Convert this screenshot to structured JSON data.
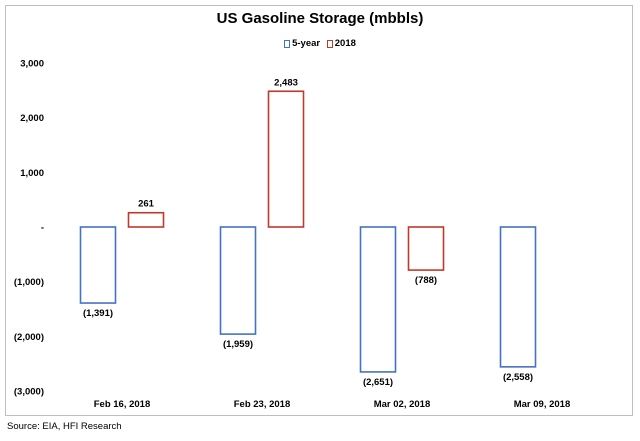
{
  "source": "Source: EIA, HFI Research",
  "chart_data": {
    "type": "bar",
    "title": "US Gasoline Storage (mbbls)",
    "xlabel": "",
    "ylabel": "",
    "categories": [
      "Feb 16, 2018",
      "Feb 23, 2018",
      "Mar 02, 2018",
      "Mar 09, 2018"
    ],
    "series": [
      {
        "name": "5-year",
        "color": "#4472c4",
        "values": [
          -1391,
          -1959,
          -2651,
          -2558
        ],
        "labels": [
          "(1,391)",
          "(1,959)",
          "(2,651)",
          "(2,558)"
        ]
      },
      {
        "name": "2018",
        "color": "#c0392b",
        "values": [
          261,
          2483,
          -788,
          null
        ],
        "labels": [
          "261",
          "2,483",
          "(788)",
          ""
        ]
      }
    ],
    "ylim": [
      -3000,
      3000
    ],
    "yticks": [
      3000,
      2000,
      1000,
      0,
      -1000,
      -2000,
      -3000
    ],
    "ytick_labels": [
      "3,000",
      "2,000",
      "1,000",
      "-",
      "(1,000)",
      "(2,000)",
      "(3,000)"
    ],
    "legend_position": "top-center",
    "grid": false
  }
}
